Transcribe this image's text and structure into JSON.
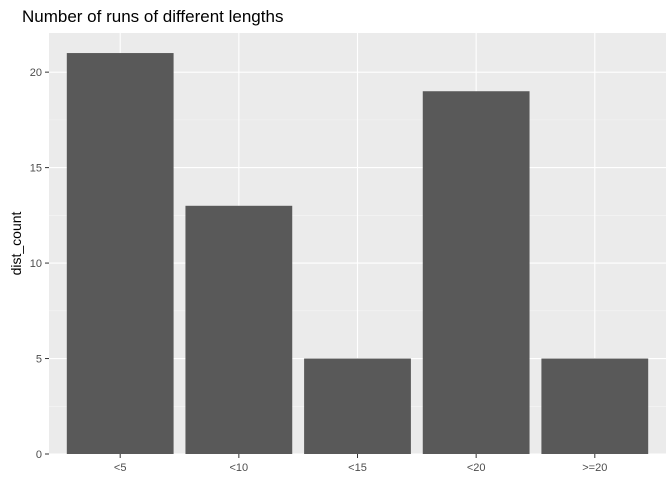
{
  "chart_data": {
    "type": "bar",
    "title": "Number of runs of different lengths",
    "xlabel": "",
    "ylabel": "dist_count",
    "categories": [
      "<5",
      "<10",
      "<15",
      "<20",
      ">=20"
    ],
    "values": [
      21,
      13,
      5,
      19,
      5
    ],
    "ylim": [
      0,
      22.05
    ],
    "yticks": [
      0,
      5,
      10,
      15,
      20
    ],
    "grid": true,
    "colors": {
      "panel_background": "#EBEBEB",
      "grid_major": "#FFFFFF",
      "grid_minor": "#F5F5F5",
      "bar_fill": "#595959",
      "tick_color": "#333333",
      "tick_label_color": "#4D4D4D"
    }
  }
}
